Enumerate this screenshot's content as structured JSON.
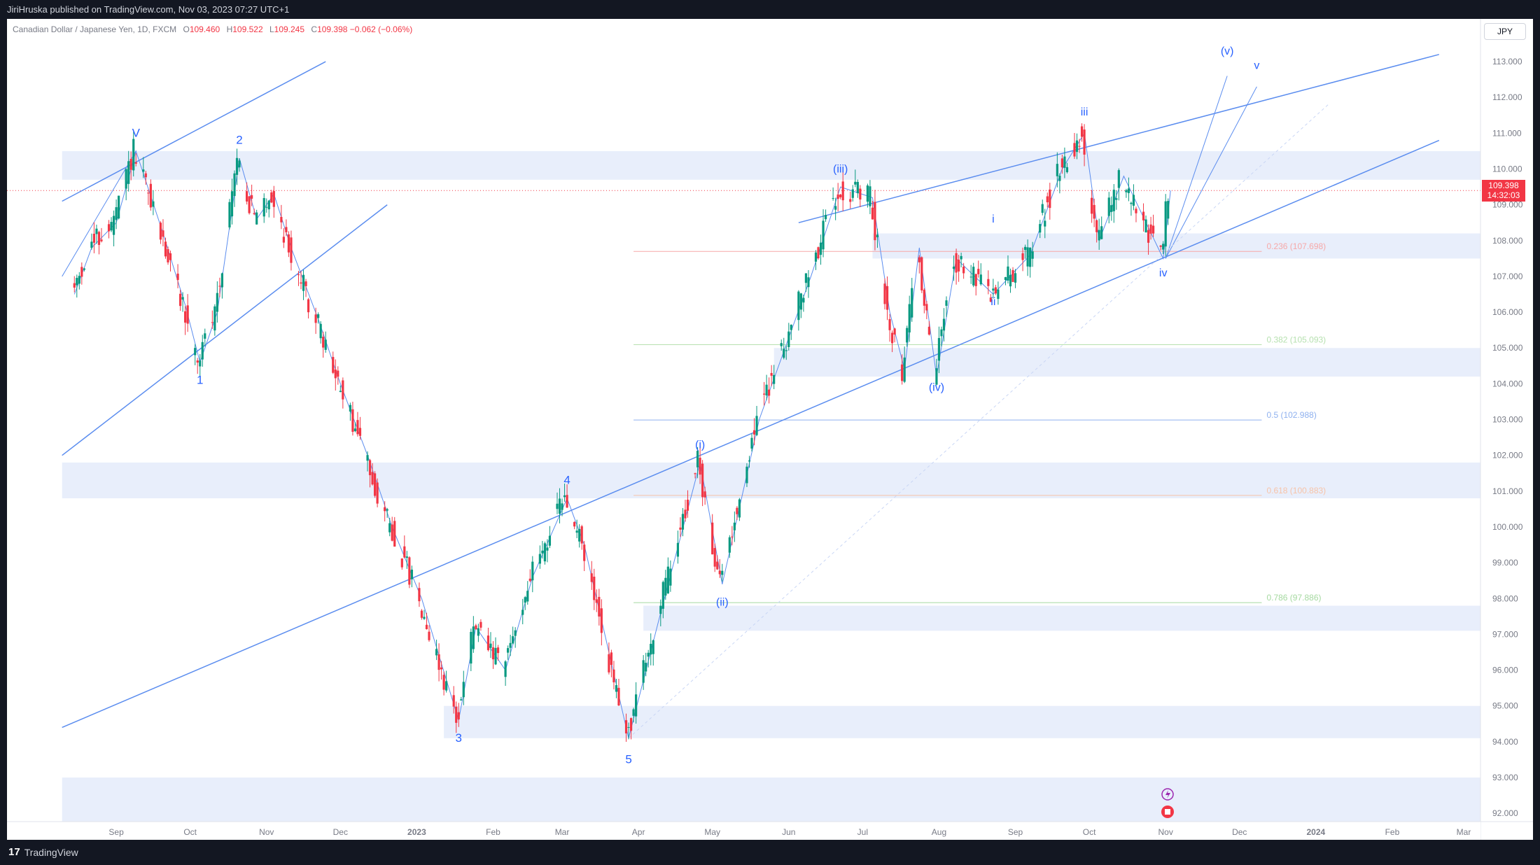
{
  "header": {
    "published": "JiriHruska published on TradingView.com, Nov 03, 2023 07:27 UTC+1"
  },
  "legend": {
    "symbol": "Canadian Dollar / Japanese Yen, 1D, FXCM",
    "o_label": "O",
    "o_value": "109.460",
    "h_label": "H",
    "h_value": "109.522",
    "l_label": "L",
    "l_value": "109.245",
    "c_label": "C",
    "c_value": "109.398",
    "change": "−0.062 (−0.06%)"
  },
  "currency": "JPY",
  "price_tag": {
    "price": "109.398",
    "countdown": "14:32:03"
  },
  "footer": {
    "brand": "TradingView"
  },
  "colors": {
    "up": "#089981",
    "down": "#f23645",
    "line": "#5b8def",
    "zone": "#e8eefb",
    "last_price": "#f23645"
  },
  "chart_data": {
    "type": "candlestick",
    "ylim": [
      91.6,
      113.9
    ],
    "y_ticks": [
      "92.000",
      "93.000",
      "94.000",
      "95.000",
      "96.000",
      "97.000",
      "98.000",
      "99.000",
      "100.000",
      "101.000",
      "102.000",
      "103.000",
      "104.000",
      "105.000",
      "106.000",
      "107.000",
      "108.000",
      "109.000",
      "110.000",
      "111.000",
      "112.000",
      "113.000"
    ],
    "x_ticks": [
      "Sep",
      "Oct",
      "Nov",
      "Dec",
      "2023",
      "Feb",
      "Mar",
      "Apr",
      "May",
      "Jun",
      "Jul",
      "Aug",
      "Sep",
      "Oct",
      "Nov",
      "Dec",
      "2024",
      "Feb",
      "Mar"
    ],
    "x_tick_bold": [
      "2023",
      "2024"
    ],
    "last_price": 109.398,
    "path_points": [
      [
        "2022-08-15",
        106.5
      ],
      [
        "2022-08-22",
        107.8
      ],
      [
        "2022-09-01",
        108.5
      ],
      [
        "2022-09-09",
        110.5
      ],
      [
        "2022-09-20",
        108.2
      ],
      [
        "2022-09-29",
        106.2
      ],
      [
        "2022-10-05",
        104.6
      ],
      [
        "2022-10-12",
        106.0
      ],
      [
        "2022-10-21",
        110.3
      ],
      [
        "2022-10-28",
        108.6
      ],
      [
        "2022-11-04",
        109.3
      ],
      [
        "2022-11-11",
        107.8
      ],
      [
        "2022-11-22",
        105.8
      ],
      [
        "2022-12-01",
        104.0
      ],
      [
        "2022-12-12",
        102.0
      ],
      [
        "2022-12-22",
        100.0
      ],
      [
        "2023-01-03",
        98.0
      ],
      [
        "2023-01-18",
        94.6
      ],
      [
        "2023-01-25",
        97.2
      ],
      [
        "2023-02-06",
        96.0
      ],
      [
        "2023-02-17",
        98.6
      ],
      [
        "2023-03-03",
        100.8
      ],
      [
        "2023-03-10",
        99.5
      ],
      [
        "2023-03-20",
        96.5
      ],
      [
        "2023-03-28",
        94.1
      ],
      [
        "2023-04-10",
        97.6
      ],
      [
        "2023-04-26",
        101.8
      ],
      [
        "2023-05-05",
        98.4
      ],
      [
        "2023-05-20",
        103.0
      ],
      [
        "2023-06-10",
        107.0
      ],
      [
        "2023-06-22",
        109.5
      ],
      [
        "2023-07-05",
        109.2
      ],
      [
        "2023-07-12",
        106.0
      ],
      [
        "2023-07-18",
        104.4
      ],
      [
        "2023-07-24",
        107.8
      ],
      [
        "2023-07-31",
        104.2
      ],
      [
        "2023-08-08",
        107.5
      ],
      [
        "2023-08-23",
        106.5
      ],
      [
        "2023-09-07",
        107.6
      ],
      [
        "2023-09-20",
        110.0
      ],
      [
        "2023-09-29",
        111.0
      ],
      [
        "2023-10-05",
        108.0
      ],
      [
        "2023-10-15",
        109.8
      ],
      [
        "2023-10-31",
        107.5
      ],
      [
        "2023-11-03",
        109.4
      ]
    ],
    "zones": [
      {
        "from": 109.7,
        "to": 110.5,
        "start": "2022-08-10",
        "end": "2024-03-10"
      },
      {
        "from": 107.5,
        "to": 108.2,
        "start": "2023-07-05",
        "end": "2024-03-10"
      },
      {
        "from": 104.2,
        "to": 105.0,
        "start": "2023-05-26",
        "end": "2024-03-10"
      },
      {
        "from": 100.8,
        "to": 101.8,
        "start": "2022-08-10",
        "end": "2024-03-10"
      },
      {
        "from": 97.1,
        "to": 97.8,
        "start": "2023-04-03",
        "end": "2024-03-10"
      },
      {
        "from": 94.1,
        "to": 95.0,
        "start": "2023-01-12",
        "end": "2024-03-10"
      },
      {
        "from": 91.6,
        "to": 93.0,
        "start": "2022-08-10",
        "end": "2024-03-10"
      }
    ],
    "trend_lines": [
      {
        "a": [
          "2022-08-10",
          109.1
        ],
        "b": [
          "2022-11-25",
          113.0
        ]
      },
      {
        "a": [
          "2022-08-10",
          102.0
        ],
        "b": [
          "2022-12-20",
          109.0
        ]
      },
      {
        "a": [
          "2022-08-10",
          94.4
        ],
        "b": [
          "2024-02-20",
          110.8
        ]
      },
      {
        "a": [
          "2023-06-05",
          108.5
        ],
        "b": [
          "2024-02-20",
          113.2
        ]
      }
    ],
    "projection_lines": [
      {
        "a": [
          "2023-11-01",
          107.5
        ],
        "b": [
          "2023-11-26",
          112.6
        ],
        "width": 1
      },
      {
        "a": [
          "2023-11-01",
          107.5
        ],
        "b": [
          "2023-12-08",
          112.3
        ],
        "width": 1
      },
      {
        "a": [
          "2022-08-10",
          107.0
        ],
        "b": [
          "2022-09-09",
          110.5
        ],
        "width": 1
      }
    ],
    "dashed_line": {
      "a": [
        "2023-03-28",
        94.1
      ],
      "b": [
        "2024-01-06",
        111.8
      ]
    },
    "fib_levels": [
      {
        "level": "0.236 (107.698)",
        "value": 107.698,
        "color": "#f7a8a8"
      },
      {
        "level": "0.382 (105.093)",
        "value": 105.093,
        "color": "#b7e1b0"
      },
      {
        "level": "0.5 (102.988)",
        "value": 102.988,
        "color": "#8fb1ef"
      },
      {
        "level": "0.618 (100.883)",
        "value": 100.883,
        "color": "#f7c3a8"
      },
      {
        "level": "0.786 (97.886)",
        "value": 97.886,
        "color": "#a5d9a0"
      }
    ],
    "fib_start": "2023-03-30",
    "fib_end": "2023-12-10",
    "wave_labels": [
      {
        "text": "V",
        "date": "2022-09-09",
        "price": 110.9,
        "size": "big"
      },
      {
        "text": "1",
        "date": "2022-10-05",
        "price": 104.0,
        "size": "big"
      },
      {
        "text": "2",
        "date": "2022-10-21",
        "price": 110.7,
        "size": "big"
      },
      {
        "text": "3",
        "date": "2023-01-18",
        "price": 94.0,
        "size": "big"
      },
      {
        "text": "4",
        "date": "2023-03-03",
        "price": 101.2,
        "size": "big"
      },
      {
        "text": "5",
        "date": "2023-03-28",
        "price": 93.4,
        "size": "big"
      },
      {
        "text": "(i)",
        "date": "2023-04-26",
        "price": 102.2,
        "size": "small"
      },
      {
        "text": "(ii)",
        "date": "2023-05-05",
        "price": 97.8,
        "size": "small"
      },
      {
        "text": "(iii)",
        "date": "2023-06-22",
        "price": 109.9,
        "size": "small"
      },
      {
        "text": "(iv)",
        "date": "2023-07-31",
        "price": 103.8,
        "size": "small"
      },
      {
        "text": "(v)",
        "date": "2023-11-26",
        "price": 113.2,
        "size": "small"
      },
      {
        "text": "i",
        "date": "2023-08-23",
        "price": 108.5,
        "size": "small"
      },
      {
        "text": "ii",
        "date": "2023-08-23",
        "price": 106.2,
        "size": "small"
      },
      {
        "text": "iii",
        "date": "2023-09-29",
        "price": 111.5,
        "size": "small"
      },
      {
        "text": "iv",
        "date": "2023-10-31",
        "price": 107.0,
        "size": "small"
      },
      {
        "text": "v",
        "date": "2023-12-08",
        "price": 112.8,
        "size": "small"
      }
    ]
  }
}
